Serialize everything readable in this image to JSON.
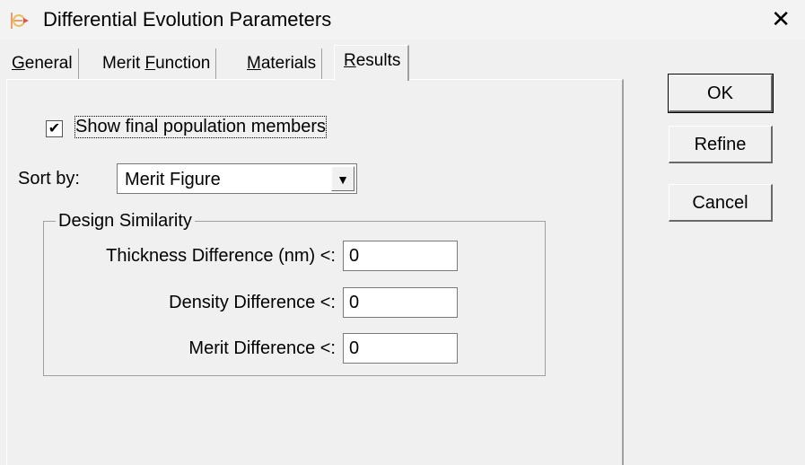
{
  "window": {
    "title": "Differential Evolution Parameters",
    "close_icon": "close-icon",
    "app_icon": "app-icon"
  },
  "tabs": [
    {
      "label": "General",
      "mnemonic": "G",
      "rest": "eneral"
    },
    {
      "label": "Merit Function",
      "pre": "Merit ",
      "mnemonic": "F",
      "rest": "unction"
    },
    {
      "label": "Materials",
      "mnemonic": "M",
      "rest": "aterials"
    },
    {
      "label": "Results",
      "mnemonic": "R",
      "rest": "esults",
      "active": true
    }
  ],
  "results": {
    "show_final": {
      "label": "Show final population members",
      "checked": true
    },
    "sort_by": {
      "label": "Sort by:",
      "value": "Merit Figure"
    },
    "design_similarity": {
      "title": "Design Similarity",
      "thickness": {
        "label": "Thickness Difference (nm) <:",
        "value": "0"
      },
      "density": {
        "label": "Density Difference <:",
        "value": "0"
      },
      "merit": {
        "label": "Merit Difference <:",
        "value": "0"
      }
    }
  },
  "buttons": {
    "ok": "OK",
    "refine": "Refine",
    "cancel": "Cancel"
  }
}
